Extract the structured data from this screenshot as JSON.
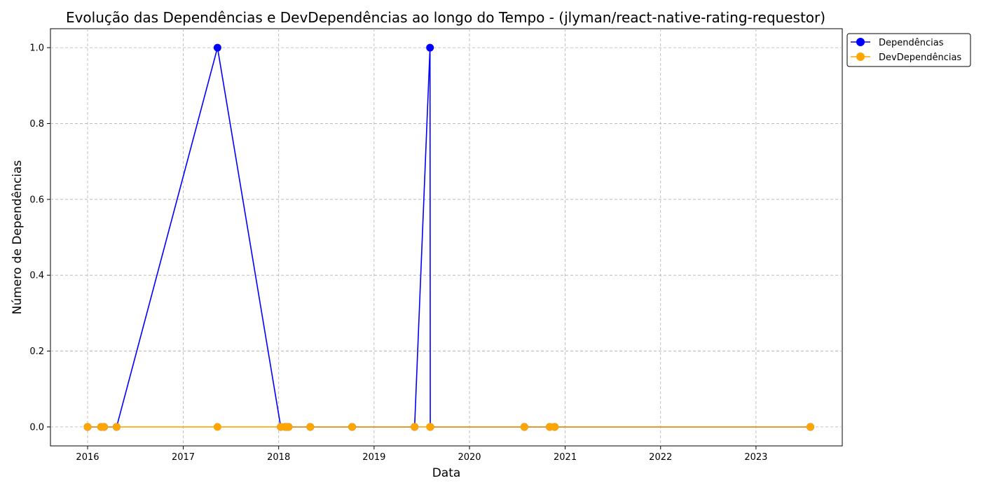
{
  "chart_data": {
    "type": "line",
    "title": "Evolução das Dependências e DevDependências ao longo do Tempo - (jlyman/react-native-rating-requestor)",
    "xlabel": "Data",
    "ylabel": "Número de Dependências",
    "x_ticks": [
      "2016",
      "2017",
      "2018",
      "2019",
      "2020",
      "2021",
      "2022",
      "2023"
    ],
    "y_ticks": [
      "0.0",
      "0.2",
      "0.4",
      "0.6",
      "0.8",
      "1.0"
    ],
    "xlim": [
      "2015-08-12",
      "2023-11-27"
    ],
    "ylim": [
      -0.05,
      1.05
    ],
    "grid": true,
    "legend_position": "upper-left-outside",
    "x": [
      "2016-01-01",
      "2016-02-22",
      "2016-03-04",
      "2016-04-21",
      "2017-05-12",
      "2018-01-09",
      "2018-01-26",
      "2018-02-02",
      "2018-02-08",
      "2018-05-02",
      "2018-10-09",
      "2019-06-05",
      "2019-08-03",
      "2019-08-04",
      "2020-07-29",
      "2020-11-03",
      "2020-11-22",
      "2023-07-28"
    ],
    "series": [
      {
        "name": "Dependências",
        "color": "#0000ff",
        "values": [
          0,
          0,
          0,
          0,
          1,
          0,
          0,
          0,
          0,
          0,
          0,
          0,
          1,
          0,
          0,
          0,
          0,
          0
        ]
      },
      {
        "name": "DevDependências",
        "color": "#ffa500",
        "values": [
          0,
          0,
          0,
          0,
          0,
          0,
          0,
          0,
          0,
          0,
          0,
          0,
          0,
          0,
          0,
          0,
          0,
          0
        ]
      }
    ]
  }
}
